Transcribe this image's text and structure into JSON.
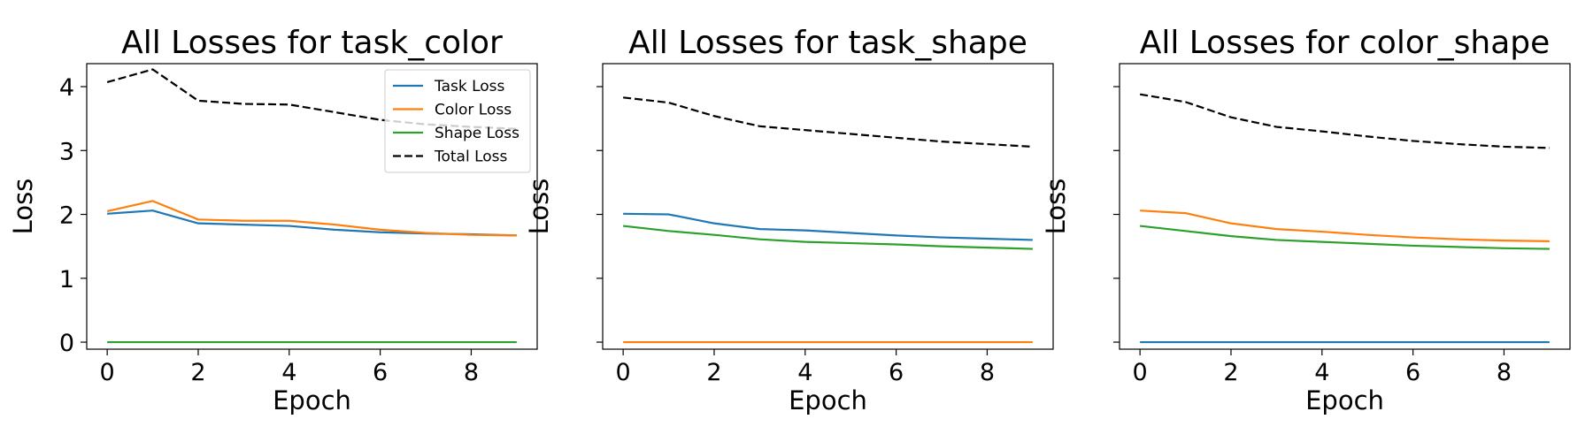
{
  "chart_data": [
    {
      "type": "line",
      "title": "All Losses for task_color",
      "xlabel": "Epoch",
      "ylabel": "Loss",
      "x": [
        0,
        1,
        2,
        3,
        4,
        5,
        6,
        7,
        8,
        9
      ],
      "xticks": [
        0,
        2,
        4,
        6,
        8
      ],
      "yticks": [
        0,
        1,
        2,
        3,
        4
      ],
      "show_y_tick_labels": true,
      "xlim": [
        -0.45,
        9.45
      ],
      "ylim": [
        -0.11,
        4.36
      ],
      "legend": "top-right",
      "series": [
        {
          "name": "Task Loss",
          "color": "#1f77b4",
          "dash": "solid",
          "values": [
            2.01,
            2.06,
            1.86,
            1.84,
            1.82,
            1.76,
            1.72,
            1.7,
            1.69,
            1.67
          ]
        },
        {
          "name": "Color Loss",
          "color": "#ff7f0e",
          "dash": "solid",
          "values": [
            2.05,
            2.21,
            1.92,
            1.9,
            1.9,
            1.84,
            1.76,
            1.71,
            1.68,
            1.67
          ]
        },
        {
          "name": "Shape Loss",
          "color": "#2ca02c",
          "dash": "solid",
          "values": [
            0,
            0,
            0,
            0,
            0,
            0,
            0,
            0,
            0,
            0
          ]
        },
        {
          "name": "Total Loss",
          "color": "#000000",
          "dash": "dashed",
          "values": [
            4.07,
            4.27,
            3.78,
            3.73,
            3.72,
            3.6,
            3.48,
            3.41,
            3.37,
            3.34
          ]
        }
      ]
    },
    {
      "type": "line",
      "title": "All Losses for task_shape",
      "xlabel": "Epoch",
      "ylabel": "Loss",
      "x": [
        0,
        1,
        2,
        3,
        4,
        5,
        6,
        7,
        8,
        9
      ],
      "xticks": [
        0,
        2,
        4,
        6,
        8
      ],
      "yticks": [
        0,
        1,
        2,
        3,
        4
      ],
      "show_y_tick_labels": false,
      "xlim": [
        -0.45,
        9.45
      ],
      "ylim": [
        -0.11,
        4.36
      ],
      "series": [
        {
          "name": "Task Loss",
          "color": "#1f77b4",
          "dash": "solid",
          "values": [
            2.01,
            2.0,
            1.86,
            1.77,
            1.75,
            1.71,
            1.67,
            1.64,
            1.62,
            1.6
          ]
        },
        {
          "name": "Color Loss",
          "color": "#ff7f0e",
          "dash": "solid",
          "values": [
            0,
            0,
            0,
            0,
            0,
            0,
            0,
            0,
            0,
            0
          ]
        },
        {
          "name": "Shape Loss",
          "color": "#2ca02c",
          "dash": "solid",
          "values": [
            1.82,
            1.74,
            1.68,
            1.61,
            1.57,
            1.55,
            1.53,
            1.5,
            1.48,
            1.46
          ]
        },
        {
          "name": "Total Loss",
          "color": "#000000",
          "dash": "dashed",
          "values": [
            3.83,
            3.75,
            3.54,
            3.38,
            3.32,
            3.26,
            3.2,
            3.14,
            3.1,
            3.06
          ]
        }
      ]
    },
    {
      "type": "line",
      "title": "All Losses for color_shape",
      "xlabel": "Epoch",
      "ylabel": "Loss",
      "x": [
        0,
        1,
        2,
        3,
        4,
        5,
        6,
        7,
        8,
        9
      ],
      "xticks": [
        0,
        2,
        4,
        6,
        8
      ],
      "yticks": [
        0,
        1,
        2,
        3,
        4
      ],
      "show_y_tick_labels": false,
      "xlim": [
        -0.45,
        9.45
      ],
      "ylim": [
        -0.11,
        4.36
      ],
      "series": [
        {
          "name": "Task Loss",
          "color": "#1f77b4",
          "dash": "solid",
          "values": [
            0,
            0,
            0,
            0,
            0,
            0,
            0,
            0,
            0,
            0
          ]
        },
        {
          "name": "Color Loss",
          "color": "#ff7f0e",
          "dash": "solid",
          "values": [
            2.06,
            2.02,
            1.86,
            1.77,
            1.73,
            1.68,
            1.64,
            1.61,
            1.59,
            1.58
          ]
        },
        {
          "name": "Shape Loss",
          "color": "#2ca02c",
          "dash": "solid",
          "values": [
            1.82,
            1.74,
            1.66,
            1.6,
            1.57,
            1.54,
            1.51,
            1.49,
            1.47,
            1.46
          ]
        },
        {
          "name": "Total Loss",
          "color": "#000000",
          "dash": "dashed",
          "values": [
            3.88,
            3.76,
            3.52,
            3.37,
            3.3,
            3.22,
            3.15,
            3.1,
            3.06,
            3.04
          ]
        }
      ]
    }
  ]
}
